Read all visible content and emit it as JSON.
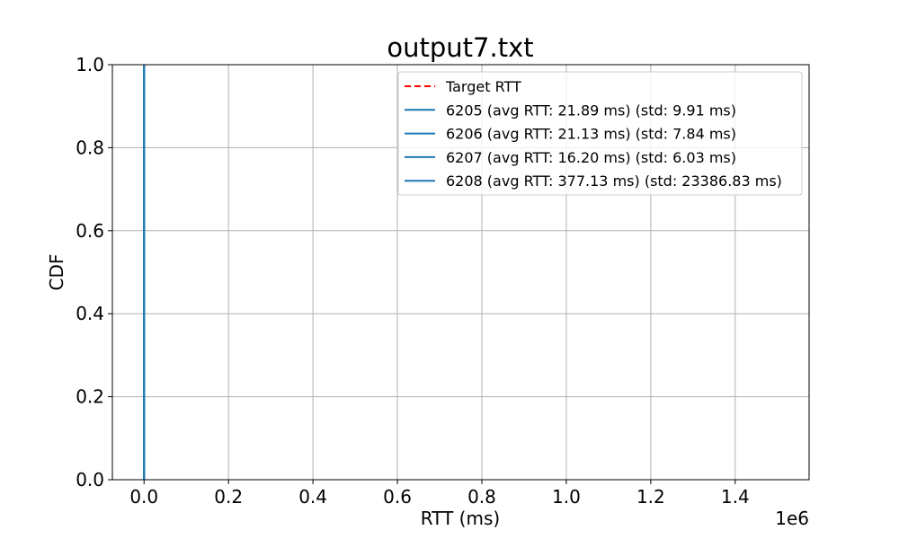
{
  "chart_data": {
    "type": "line",
    "title": "output7.txt",
    "xlabel": "RTT (ms)",
    "ylabel": "CDF",
    "x_offset_label": "1e6",
    "xlim": [
      -0.075,
      1.575
    ],
    "ylim": [
      0,
      1
    ],
    "x_ticks": [
      0.0,
      0.2,
      0.4,
      0.6,
      0.8,
      1.0,
      1.2,
      1.4
    ],
    "x_tick_labels": [
      "0.0",
      "0.2",
      "0.4",
      "0.6",
      "0.8",
      "1.0",
      "1.2",
      "1.4"
    ],
    "y_ticks": [
      0.0,
      0.2,
      0.4,
      0.6,
      0.8,
      1.0
    ],
    "y_tick_labels": [
      "0.0",
      "0.2",
      "0.4",
      "0.6",
      "0.8",
      "1.0"
    ],
    "grid": true,
    "legend_position": "top-right",
    "series": [
      {
        "name": "Target RTT",
        "style": "dashed",
        "color": "#ff0000",
        "x": [],
        "y": []
      },
      {
        "name": "6205 (avg RTT: 21.89 ms) (std: 9.91 ms)",
        "style": "solid",
        "color": "#1f77b4",
        "x": [
          0,
          0
        ],
        "y": [
          0,
          1
        ]
      },
      {
        "name": "6206 (avg RTT: 21.13 ms) (std: 7.84 ms)",
        "style": "solid",
        "color": "#1f77b4",
        "x": [
          0,
          0
        ],
        "y": [
          0,
          1
        ]
      },
      {
        "name": "6207 (avg RTT: 16.20 ms) (std: 6.03 ms)",
        "style": "solid",
        "color": "#1f77b4",
        "x": [
          0,
          0
        ],
        "y": [
          0,
          1
        ]
      },
      {
        "name": "6208 (avg RTT: 377.13 ms) (std: 23386.83 ms)",
        "style": "solid",
        "color": "#1f77b4",
        "x": [
          0,
          0
        ],
        "y": [
          0,
          1
        ]
      }
    ]
  }
}
